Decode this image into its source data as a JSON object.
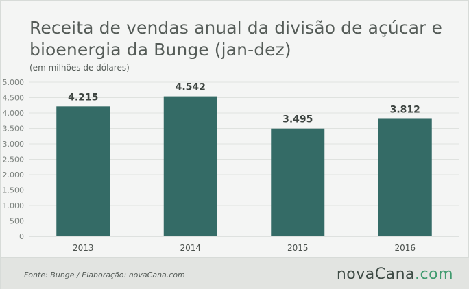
{
  "chart_data": {
    "type": "bar",
    "title": "Receita de vendas anual da divisão de açúcar e bioenergia da Bunge (jan-dez)",
    "subtitle": "(em milhões de dólares)",
    "categories": [
      "2013",
      "2014",
      "2015",
      "2016"
    ],
    "values": [
      4215,
      4542,
      3495,
      3812
    ],
    "value_labels": [
      "4.215",
      "4.542",
      "3.495",
      "3.812"
    ],
    "ylim": [
      0,
      5000
    ],
    "y_ticks": [
      0,
      500,
      1000,
      1500,
      2000,
      2500,
      3000,
      3500,
      4000,
      4500,
      5000
    ],
    "y_tick_labels": [
      "0",
      "500",
      "1.000",
      "1.500",
      "2.000",
      "2.500",
      "3.000",
      "3.500",
      "4.000",
      "4.500",
      "5.000"
    ],
    "grid": true,
    "bar_color": "#346b66"
  },
  "footer": {
    "source": "Fonte:  Bunge  / Elaboração:  novaCana.com",
    "logo_main": "novaCana",
    "logo_dot": ".com"
  }
}
